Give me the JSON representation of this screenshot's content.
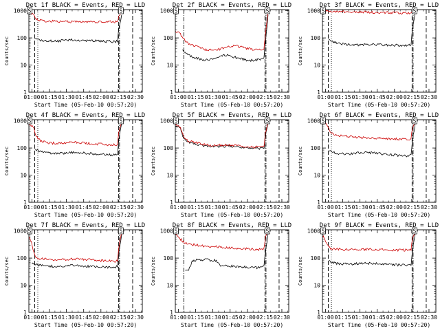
{
  "x_tick_labels": [
    "01:00",
    "01:15",
    "01:30",
    "01:45",
    "02:00",
    "02:15",
    "02:30"
  ],
  "x_ticks_hours": [
    1.0,
    1.25,
    1.5,
    1.75,
    2.0,
    2.25,
    2.5
  ],
  "y_tick_labels": [
    "1",
    "10",
    "100",
    "1000"
  ],
  "xlabel": "Start Time (05-Feb-10 00:57:20)",
  "ylabel": "Counts/sec",
  "xlim": [
    0.9556,
    2.6
  ],
  "ylim": [
    1,
    1100
  ],
  "yscale": "log",
  "colors": {
    "events": "#000000",
    "lld": "#cc0000",
    "axes": "#000000"
  },
  "chart_data": [
    {
      "type": "line",
      "title": "Det 1f BLACK = Events, RED = LLD",
      "marker_labels": [
        "S",
        "S"
      ],
      "marker_x_hours": [
        0.965,
        2.29
      ],
      "dashed_x_hours": [
        1.04,
        2.255,
        2.46
      ],
      "dotted_x_hours": [
        1.085
      ],
      "dashdot_x_hours": [
        2.27
      ],
      "series": [
        {
          "name": "Events",
          "color": "#000000",
          "x": [
            0.96,
            0.99,
            1.03,
            1.05,
            1.1,
            1.2,
            1.3,
            1.4,
            1.5,
            1.6,
            1.7,
            1.8,
            1.9,
            2.0,
            2.1,
            2.2,
            2.24,
            2.26,
            2.3
          ],
          "y": [
            0,
            0,
            0,
            100,
            85,
            78,
            76,
            78,
            82,
            85,
            83,
            80,
            78,
            76,
            74,
            72,
            78,
            220,
            700
          ]
        },
        {
          "name": "LLD",
          "color": "#cc0000",
          "x": [
            0.96,
            0.99,
            1.03,
            1.05,
            1.1,
            1.2,
            1.3,
            1.4,
            1.5,
            1.6,
            1.7,
            1.8,
            1.9,
            2.0,
            2.1,
            2.2,
            2.24,
            2.26,
            2.3
          ],
          "y": [
            850,
            800,
            700,
            520,
            450,
            420,
            410,
            405,
            400,
            398,
            395,
            393,
            392,
            390,
            388,
            387,
            395,
            650,
            950
          ]
        }
      ]
    },
    {
      "type": "line",
      "title": "Det 2f BLACK = Events, RED = LLD",
      "marker_labels": [
        "S",
        "S"
      ],
      "marker_x_hours": [
        0.965,
        2.29
      ],
      "dashed_x_hours": [
        2.255,
        2.46
      ],
      "dotted_x_hours": [],
      "dashdot_x_hours": [
        1.08,
        2.27
      ],
      "series": [
        {
          "name": "Events",
          "color": "#000000",
          "x": [
            1.06,
            1.1,
            1.15,
            1.2,
            1.3,
            1.4,
            1.5,
            1.6,
            1.7,
            1.8,
            1.9,
            2.0,
            2.1,
            2.2,
            2.24,
            2.26,
            2.3
          ],
          "y": [
            35,
            28,
            24,
            20,
            17,
            15,
            17,
            21,
            23,
            20,
            17,
            15,
            15,
            16,
            18,
            60,
            700
          ]
        },
        {
          "name": "LLD",
          "color": "#cc0000",
          "x": [
            0.96,
            0.99,
            1.03,
            1.05,
            1.1,
            1.15,
            1.2,
            1.3,
            1.4,
            1.5,
            1.6,
            1.7,
            1.8,
            1.9,
            2.0,
            2.1,
            2.2,
            2.24,
            2.26,
            2.3
          ],
          "y": [
            170,
            160,
            140,
            110,
            75,
            62,
            54,
            44,
            37,
            35,
            38,
            47,
            52,
            47,
            41,
            37,
            36,
            38,
            120,
            900
          ]
        }
      ]
    },
    {
      "type": "line",
      "title": "Det 3f BLACK = Events, RED = LLD",
      "marker_labels": [
        "S",
        "S"
      ],
      "marker_x_hours": [
        0.965,
        2.29
      ],
      "dashed_x_hours": [
        1.04,
        2.255,
        2.46
      ],
      "dotted_x_hours": [
        1.085
      ],
      "dashdot_x_hours": [
        2.27
      ],
      "series": [
        {
          "name": "Events",
          "color": "#000000",
          "x": [
            1.05,
            1.1,
            1.2,
            1.3,
            1.4,
            1.5,
            1.6,
            1.7,
            1.8,
            1.9,
            2.0,
            2.1,
            2.2,
            2.24,
            2.26,
            2.3
          ],
          "y": [
            85,
            72,
            62,
            58,
            56,
            55,
            56,
            57,
            56,
            55,
            54,
            52,
            52,
            56,
            220,
            900
          ]
        },
        {
          "name": "LLD",
          "color": "#cc0000",
          "x": [
            0.96,
            1.0,
            1.05,
            1.1,
            1.2,
            1.3,
            1.4,
            1.5,
            1.6,
            1.7,
            1.8,
            1.9,
            2.0,
            2.1,
            2.2,
            2.24,
            2.26,
            2.3
          ],
          "y": [
            1000,
            1000,
            990,
            960,
            930,
            910,
            900,
            890,
            880,
            870,
            860,
            850,
            840,
            830,
            825,
            840,
            950,
            1000
          ]
        }
      ]
    },
    {
      "type": "line",
      "title": "Det 4f BLACK = Events, RED = LLD",
      "marker_labels": [
        "S",
        "S"
      ],
      "marker_x_hours": [
        0.965,
        2.29
      ],
      "dashed_x_hours": [
        1.04,
        2.255,
        2.46
      ],
      "dotted_x_hours": [
        1.085
      ],
      "dashdot_x_hours": [
        2.27
      ],
      "series": [
        {
          "name": "Events",
          "color": "#000000",
          "x": [
            1.05,
            1.1,
            1.2,
            1.3,
            1.4,
            1.5,
            1.6,
            1.7,
            1.8,
            1.9,
            2.0,
            2.1,
            2.2,
            2.24,
            2.26,
            2.3
          ],
          "y": [
            90,
            75,
            68,
            64,
            62,
            66,
            70,
            68,
            64,
            60,
            58,
            56,
            56,
            60,
            200,
            800
          ]
        },
        {
          "name": "LLD",
          "color": "#cc0000",
          "x": [
            0.96,
            0.99,
            1.03,
            1.05,
            1.1,
            1.2,
            1.3,
            1.4,
            1.5,
            1.6,
            1.7,
            1.8,
            1.9,
            2.0,
            2.1,
            2.2,
            2.24,
            2.26,
            2.3
          ],
          "y": [
            700,
            650,
            550,
            300,
            200,
            160,
            150,
            148,
            155,
            160,
            158,
            150,
            142,
            138,
            132,
            130,
            140,
            400,
            950
          ]
        }
      ]
    },
    {
      "type": "line",
      "title": "Det 5f BLACK = Events, RED = LLD",
      "marker_labels": [
        "S",
        "S"
      ],
      "marker_x_hours": [
        0.965,
        2.29
      ],
      "dashed_x_hours": [
        2.255,
        2.46
      ],
      "dotted_x_hours": [],
      "dashdot_x_hours": [
        1.08,
        2.27
      ],
      "series": [
        {
          "name": "Events",
          "color": "#000000",
          "x": [
            0.96,
            0.99,
            1.03,
            1.06,
            1.1,
            1.2,
            1.3,
            1.4,
            1.5,
            1.6,
            1.7,
            1.8,
            1.9,
            2.0,
            2.1,
            2.2,
            2.24,
            2.26,
            2.3
          ],
          "y": [
            650,
            600,
            500,
            300,
            190,
            150,
            130,
            118,
            112,
            115,
            118,
            112,
            105,
            100,
            98,
            96,
            100,
            280,
            900
          ]
        },
        {
          "name": "LLD",
          "color": "#cc0000",
          "x": [
            0.96,
            0.99,
            1.03,
            1.06,
            1.1,
            1.2,
            1.3,
            1.4,
            1.5,
            1.6,
            1.7,
            1.8,
            1.9,
            2.0,
            2.1,
            2.2,
            2.24,
            2.26,
            2.3
          ],
          "y": [
            700,
            650,
            550,
            320,
            200,
            165,
            145,
            130,
            125,
            128,
            130,
            125,
            118,
            112,
            108,
            106,
            112,
            320,
            950
          ]
        }
      ]
    },
    {
      "type": "line",
      "title": "Det 6f BLACK = Events, RED = LLD",
      "marker_labels": [
        "S",
        "S"
      ],
      "marker_x_hours": [
        0.965,
        2.29
      ],
      "dashed_x_hours": [
        1.04,
        2.255,
        2.46
      ],
      "dotted_x_hours": [
        1.085
      ],
      "dashdot_x_hours": [
        2.27
      ],
      "series": [
        {
          "name": "Events",
          "color": "#000000",
          "x": [
            1.05,
            1.1,
            1.2,
            1.3,
            1.4,
            1.5,
            1.6,
            1.7,
            1.8,
            1.9,
            2.0,
            2.1,
            2.2,
            2.24,
            2.26,
            2.3
          ],
          "y": [
            85,
            70,
            62,
            60,
            62,
            66,
            68,
            66,
            62,
            58,
            55,
            52,
            52,
            56,
            180,
            800
          ]
        },
        {
          "name": "LLD",
          "color": "#cc0000",
          "x": [
            0.96,
            0.99,
            1.03,
            1.06,
            1.1,
            1.2,
            1.3,
            1.4,
            1.5,
            1.6,
            1.7,
            1.8,
            1.9,
            2.0,
            2.1,
            2.2,
            2.24,
            2.26,
            2.3
          ],
          "y": [
            900,
            850,
            700,
            450,
            330,
            290,
            270,
            255,
            245,
            240,
            235,
            228,
            220,
            215,
            210,
            205,
            215,
            550,
            1000
          ]
        }
      ]
    },
    {
      "type": "line",
      "title": "Det 7f BLACK = Events, RED = LLD",
      "marker_labels": [
        "S",
        "S"
      ],
      "marker_x_hours": [
        0.965,
        2.29
      ],
      "dashed_x_hours": [
        1.04,
        2.255,
        2.46
      ],
      "dotted_x_hours": [
        1.085
      ],
      "dashdot_x_hours": [
        2.27
      ],
      "series": [
        {
          "name": "Events",
          "color": "#000000",
          "x": [
            1.0,
            1.05,
            1.1,
            1.2,
            1.3,
            1.4,
            1.5,
            1.6,
            1.7,
            1.8,
            1.9,
            2.0,
            2.1,
            2.2,
            2.24,
            2.26,
            2.3
          ],
          "y": [
            65,
            58,
            54,
            52,
            50,
            48,
            52,
            54,
            52,
            50,
            48,
            47,
            46,
            45,
            50,
            150,
            700
          ]
        },
        {
          "name": "LLD",
          "color": "#cc0000",
          "x": [
            0.96,
            0.99,
            1.03,
            1.06,
            1.1,
            1.2,
            1.3,
            1.4,
            1.5,
            1.6,
            1.7,
            1.8,
            1.9,
            2.0,
            2.1,
            2.2,
            2.24,
            2.26,
            2.3
          ],
          "y": [
            600,
            400,
            150,
            110,
            95,
            90,
            88,
            85,
            90,
            95,
            92,
            88,
            84,
            80,
            78,
            76,
            82,
            250,
            900
          ]
        }
      ]
    },
    {
      "type": "line",
      "title": "Det 8f BLACK = Events, RED = LLD",
      "marker_labels": [
        "S",
        "S"
      ],
      "marker_x_hours": [
        0.965,
        2.29
      ],
      "dashed_x_hours": [
        2.255,
        2.46
      ],
      "dotted_x_hours": [],
      "dashdot_x_hours": [
        1.08,
        2.27
      ],
      "series": [
        {
          "name": "Events",
          "color": "#000000",
          "x": [
            1.1,
            1.15,
            1.18,
            1.2,
            1.3,
            1.4,
            1.5,
            1.55,
            1.6,
            1.7,
            1.8,
            1.9,
            2.0,
            2.1,
            2.2,
            2.24,
            2.26,
            2.3
          ],
          "y": [
            35,
            38,
            55,
            80,
            85,
            88,
            82,
            80,
            55,
            52,
            50,
            48,
            46,
            45,
            44,
            48,
            150,
            800
          ]
        },
        {
          "name": "LLD",
          "color": "#cc0000",
          "x": [
            0.96,
            0.99,
            1.03,
            1.06,
            1.1,
            1.2,
            1.3,
            1.4,
            1.5,
            1.6,
            1.7,
            1.8,
            1.9,
            2.0,
            2.1,
            2.2,
            2.24,
            2.26,
            2.3
          ],
          "y": [
            800,
            700,
            500,
            420,
            360,
            320,
            290,
            275,
            265,
            255,
            245,
            235,
            228,
            220,
            210,
            205,
            215,
            550,
            1000
          ]
        }
      ]
    },
    {
      "type": "line",
      "title": "Det 9f BLACK = Events, RED = LLD",
      "marker_labels": [
        "S",
        "S"
      ],
      "marker_x_hours": [
        0.965,
        2.29
      ],
      "dashed_x_hours": [
        1.04,
        2.255,
        2.46
      ],
      "dotted_x_hours": [
        1.085
      ],
      "dashdot_x_hours": [
        2.27
      ],
      "series": [
        {
          "name": "Events",
          "color": "#000000",
          "x": [
            1.05,
            1.1,
            1.2,
            1.3,
            1.4,
            1.5,
            1.6,
            1.7,
            1.8,
            1.9,
            2.0,
            2.1,
            2.2,
            2.24,
            2.26,
            2.3
          ],
          "y": [
            80,
            68,
            62,
            60,
            61,
            63,
            64,
            63,
            61,
            59,
            57,
            55,
            55,
            58,
            180,
            800
          ]
        },
        {
          "name": "LLD",
          "color": "#cc0000",
          "x": [
            0.96,
            0.99,
            1.03,
            1.06,
            1.1,
            1.2,
            1.3,
            1.4,
            1.5,
            1.6,
            1.7,
            1.8,
            1.9,
            2.0,
            2.1,
            2.2,
            2.24,
            2.26,
            2.3
          ],
          "y": [
            650,
            500,
            300,
            240,
            220,
            210,
            205,
            205,
            208,
            210,
            207,
            203,
            200,
            198,
            196,
            195,
            205,
            520,
            950
          ]
        }
      ]
    }
  ]
}
